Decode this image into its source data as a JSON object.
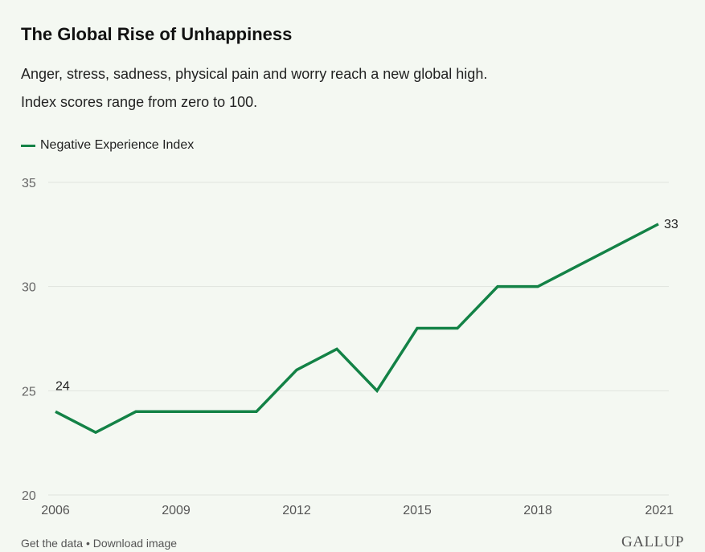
{
  "title": "The Global Rise of Unhappiness",
  "subtitle_lines": [
    "Anger, stress, sadness, physical pain and worry reach a new global high.",
    "Index scores range from zero to 100."
  ],
  "footer": {
    "get_data": "Get the data",
    "separator": " • ",
    "download": "Download image",
    "logo": "GALLUP"
  },
  "colors": {
    "line": "#138246",
    "grid": "#dfe3dd",
    "background": "#f4f8f2"
  },
  "chart_data": {
    "type": "line",
    "title": "The Global Rise of Unhappiness",
    "xlabel": "",
    "ylabel": "",
    "x": [
      2006,
      2007,
      2008,
      2009,
      2010,
      2011,
      2012,
      2013,
      2014,
      2015,
      2016,
      2017,
      2018,
      2019,
      2020,
      2021
    ],
    "series": [
      {
        "name": "Negative Experience Index",
        "values": [
          24,
          23,
          24,
          24,
          24,
          24,
          26,
          27,
          25,
          28,
          28,
          30,
          30,
          31,
          32,
          33
        ]
      }
    ],
    "ylim": [
      20,
      35
    ],
    "yticks": [
      "20",
      "25",
      "30",
      "35"
    ],
    "xticks": [
      "2006",
      "2009",
      "2012",
      "2015",
      "2018",
      "2021"
    ],
    "data_labels": [
      {
        "x": 2006,
        "label": "24"
      },
      {
        "x": 2021,
        "label": "33"
      }
    ],
    "grid": true,
    "legend": "top-left"
  }
}
